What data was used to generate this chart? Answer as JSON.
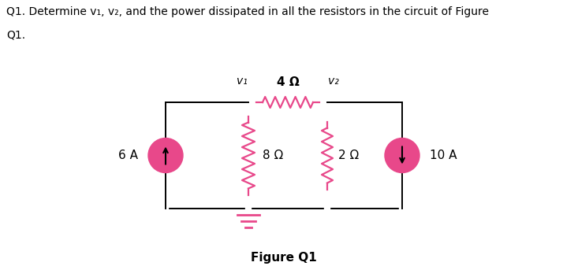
{
  "title_line1": "Q1. Determine v₁, v₂, and the power dissipated in all the resistors in the circuit of Figure",
  "title_line2": "Q1.",
  "figure_label": "Figure Q1",
  "background_color": "#ffffff",
  "resistor_color": "#e8488a",
  "source_fill_color": "#e8488a",
  "source_edge_color": "#e8488a",
  "wire_color": "#000000",
  "label_6A": "6 A",
  "label_10A": "10 A",
  "label_4ohm": "4 Ω",
  "label_8ohm": "8 Ω",
  "label_2ohm": "2 Ω",
  "label_v1": "v₁",
  "label_v2": "v₂",
  "ground_color": "#e8488a",
  "lw_wire": 1.4,
  "lw_res": 1.6,
  "lw_src": 1.6
}
